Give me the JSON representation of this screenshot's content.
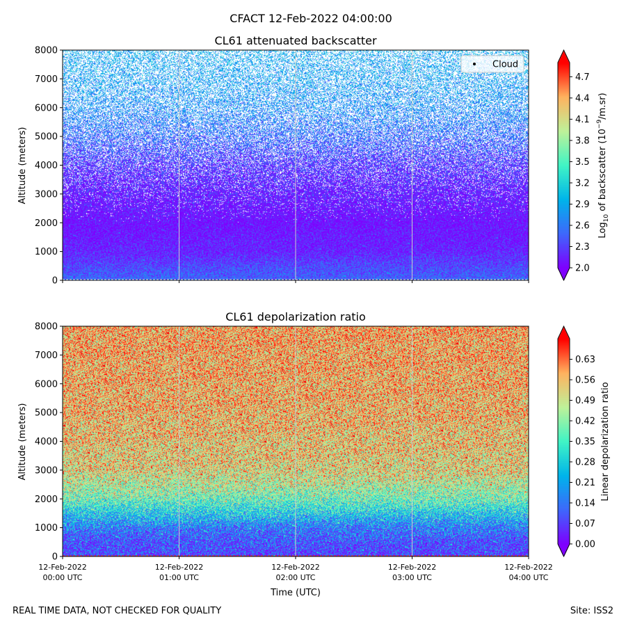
{
  "figure": {
    "suptitle": "CFACT 12-Feb-2022 04:00:00",
    "footer_left": "REAL TIME DATA, NOT CHECKED FOR QUALITY",
    "footer_right": "Site: ISS2"
  },
  "colors": {
    "rainbow": [
      "#7f00ff",
      "#3f68fc",
      "#00b5eb",
      "#41f5c6",
      "#bff29a",
      "#ffb360",
      "#ff0000"
    ]
  },
  "chart_data": [
    {
      "type": "heatmap",
      "title": "CL61 attenuated backscatter",
      "ylabel": "Altitude (meters)",
      "xlabel": "",
      "ylim": [
        0,
        8000
      ],
      "yticks": [
        "0",
        "1000",
        "2000",
        "3000",
        "4000",
        "5000",
        "6000",
        "7000",
        "8000"
      ],
      "xticks": [
        {
          "line1": "12-Feb-2022",
          "line2": "00:00 UTC"
        },
        {
          "line1": "12-Feb-2022",
          "line2": "01:00 UTC"
        },
        {
          "line1": "12-Feb-2022",
          "line2": "02:00 UTC"
        },
        {
          "line1": "12-Feb-2022",
          "line2": "03:00 UTC"
        },
        {
          "line1": "12-Feb-2022",
          "line2": "04:00 UTC"
        }
      ],
      "xtick_labels_shown": false,
      "legend": [
        {
          "label": "Cloud",
          "marker": "dot",
          "color": "#000000",
          "position": "upper-right"
        }
      ],
      "colorbar": {
        "label_prefix": "Log",
        "label_sub": "10",
        "label_middle": " of backscatter (10",
        "label_sup": "−9",
        "label_suffix": "/m.sr)",
        "range": [
          2.0,
          4.9
        ],
        "ticks": [
          "2.0",
          "2.3",
          "2.6",
          "2.9",
          "3.2",
          "3.5",
          "3.8",
          "4.1",
          "4.4",
          "4.7"
        ],
        "extend": "both",
        "colormap": "rainbow"
      },
      "profile": [
        {
          "altitude": 0,
          "value": 2.5
        },
        {
          "altitude": 500,
          "value": 2.35
        },
        {
          "altitude": 1000,
          "value": 2.15
        },
        {
          "altitude": 2000,
          "value": 2.05
        },
        {
          "altitude": 3000,
          "value": 2.15
        },
        {
          "altitude": 4000,
          "value": 2.3
        },
        {
          "altitude": 5000,
          "value": 2.55
        },
        {
          "altitude": 6000,
          "value": 2.75
        },
        {
          "altitude": 7000,
          "value": 2.85
        },
        {
          "altitude": 8000,
          "value": 2.9
        }
      ],
      "missing_fraction": [
        {
          "altitude": 0,
          "value": 0.0
        },
        {
          "altitude": 2000,
          "value": 0.0
        },
        {
          "altitude": 3000,
          "value": 0.1
        },
        {
          "altitude": 4000,
          "value": 0.25
        },
        {
          "altitude": 5000,
          "value": 0.4
        },
        {
          "altitude": 6000,
          "value": 0.5
        },
        {
          "altitude": 8000,
          "value": 0.6
        }
      ]
    },
    {
      "type": "heatmap",
      "title": "CL61 depolarization ratio",
      "ylabel": "Altitude (meters)",
      "xlabel": "Time (UTC)",
      "ylim": [
        0,
        8000
      ],
      "yticks": [
        "0",
        "1000",
        "2000",
        "3000",
        "4000",
        "5000",
        "6000",
        "7000",
        "8000"
      ],
      "xticks": [
        {
          "line1": "12-Feb-2022",
          "line2": "00:00 UTC"
        },
        {
          "line1": "12-Feb-2022",
          "line2": "01:00 UTC"
        },
        {
          "line1": "12-Feb-2022",
          "line2": "02:00 UTC"
        },
        {
          "line1": "12-Feb-2022",
          "line2": "03:00 UTC"
        },
        {
          "line1": "12-Feb-2022",
          "line2": "04:00 UTC"
        }
      ],
      "xtick_labels_shown": true,
      "colorbar": {
        "label": "Linear depolarization ratio",
        "range": [
          0.0,
          0.7
        ],
        "ticks": [
          "0.00",
          "0.07",
          "0.14",
          "0.21",
          "0.28",
          "0.35",
          "0.42",
          "0.49",
          "0.56",
          "0.63"
        ],
        "extend": "both",
        "colormap": "rainbow"
      },
      "profile": [
        {
          "altitude": 0,
          "value": 0.08
        },
        {
          "altitude": 500,
          "value": 0.1
        },
        {
          "altitude": 1000,
          "value": 0.16
        },
        {
          "altitude": 1500,
          "value": 0.28
        },
        {
          "altitude": 2000,
          "value": 0.4
        },
        {
          "altitude": 2500,
          "value": 0.47
        },
        {
          "altitude": 3000,
          "value": 0.52
        },
        {
          "altitude": 5000,
          "value": 0.56
        },
        {
          "altitude": 8000,
          "value": 0.58
        }
      ],
      "missing_fraction": [
        {
          "altitude": 0,
          "value": 0.0
        },
        {
          "altitude": 8000,
          "value": 0.0
        }
      ]
    }
  ]
}
